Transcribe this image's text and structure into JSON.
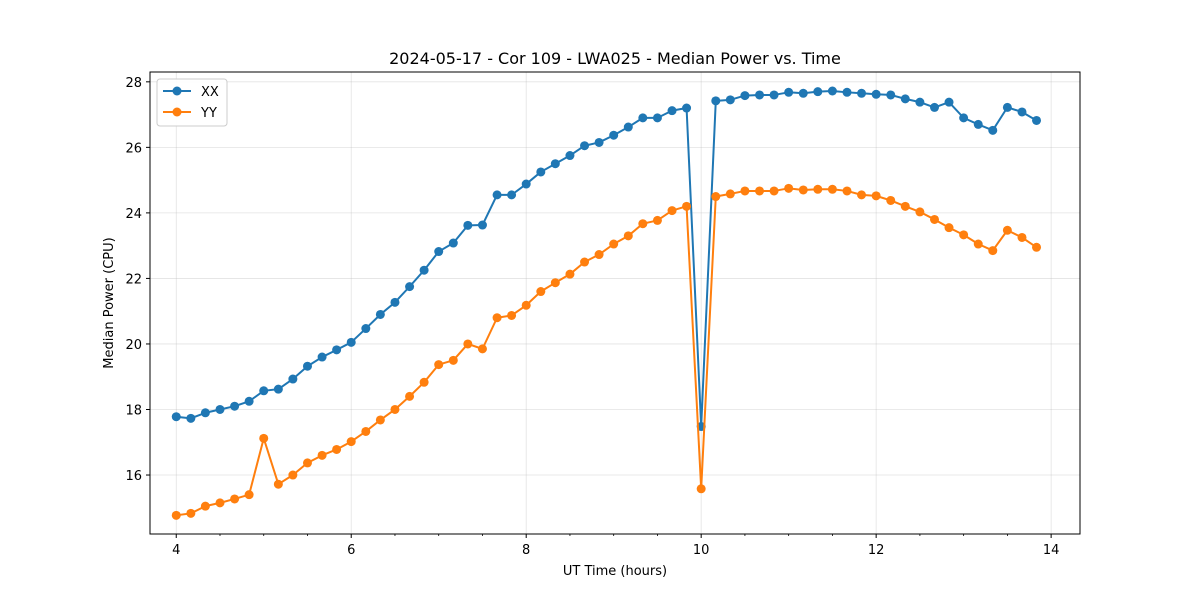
{
  "chart_data": {
    "type": "line",
    "title": "2024-05-17 - Cor 109 - LWA025 - Median Power vs. Time",
    "xlabel": "UT Time (hours)",
    "ylabel": "Median Power (CPU)",
    "xlim": [
      3.7,
      14.33
    ],
    "ylim": [
      14.2,
      28.3
    ],
    "xticks": [
      4,
      6,
      8,
      10,
      12,
      14
    ],
    "yticks": [
      16,
      18,
      20,
      22,
      24,
      26,
      28
    ],
    "grid": true,
    "legend_position": "top-left",
    "x": [
      4.0,
      4.167,
      4.333,
      4.5,
      4.667,
      4.833,
      5.0,
      5.167,
      5.333,
      5.5,
      5.667,
      5.833,
      6.0,
      6.167,
      6.333,
      6.5,
      6.667,
      6.833,
      7.0,
      7.167,
      7.333,
      7.5,
      7.667,
      7.833,
      8.0,
      8.167,
      8.333,
      8.5,
      8.667,
      8.833,
      9.0,
      9.167,
      9.333,
      9.5,
      9.667,
      9.833,
      10.0,
      10.167,
      10.333,
      10.5,
      10.667,
      10.833,
      11.0,
      11.167,
      11.333,
      11.5,
      11.667,
      11.833,
      12.0,
      12.167,
      12.333,
      12.5,
      12.667,
      12.833,
      13.0,
      13.167,
      13.333,
      13.5,
      13.667,
      13.833
    ],
    "series": [
      {
        "name": "XX",
        "color": "#1f77b4",
        "values": [
          17.78,
          17.73,
          17.9,
          18.0,
          18.1,
          18.25,
          18.57,
          18.62,
          18.93,
          19.32,
          19.6,
          19.82,
          20.05,
          20.47,
          20.9,
          21.27,
          21.75,
          22.25,
          22.82,
          23.08,
          23.62,
          23.63,
          24.55,
          24.55,
          24.88,
          25.25,
          25.5,
          25.75,
          26.05,
          26.15,
          26.37,
          26.62,
          26.9,
          26.9,
          27.12,
          27.2,
          17.48,
          27.42,
          27.45,
          27.58,
          27.6,
          27.6,
          27.68,
          27.65,
          27.7,
          27.72,
          27.68,
          27.65,
          27.62,
          27.6,
          27.48,
          27.38,
          27.22,
          27.38,
          26.9,
          26.7,
          26.52,
          27.22,
          27.08,
          26.82
        ]
      },
      {
        "name": "YY",
        "color": "#ff7f0e",
        "values": [
          14.77,
          14.83,
          15.05,
          15.15,
          15.27,
          15.4,
          17.12,
          15.72,
          16.0,
          16.37,
          16.6,
          16.78,
          17.02,
          17.33,
          17.68,
          18.0,
          18.4,
          18.83,
          19.37,
          19.5,
          20.0,
          19.85,
          20.8,
          20.87,
          21.18,
          21.6,
          21.87,
          22.13,
          22.5,
          22.73,
          23.05,
          23.3,
          23.67,
          23.77,
          24.07,
          24.2,
          15.58,
          24.5,
          24.58,
          24.67,
          24.67,
          24.67,
          24.75,
          24.7,
          24.72,
          24.72,
          24.67,
          24.55,
          24.52,
          24.38,
          24.2,
          24.03,
          23.8,
          23.55,
          23.33,
          23.05,
          22.85,
          23.47,
          23.25,
          22.95
        ]
      }
    ]
  }
}
